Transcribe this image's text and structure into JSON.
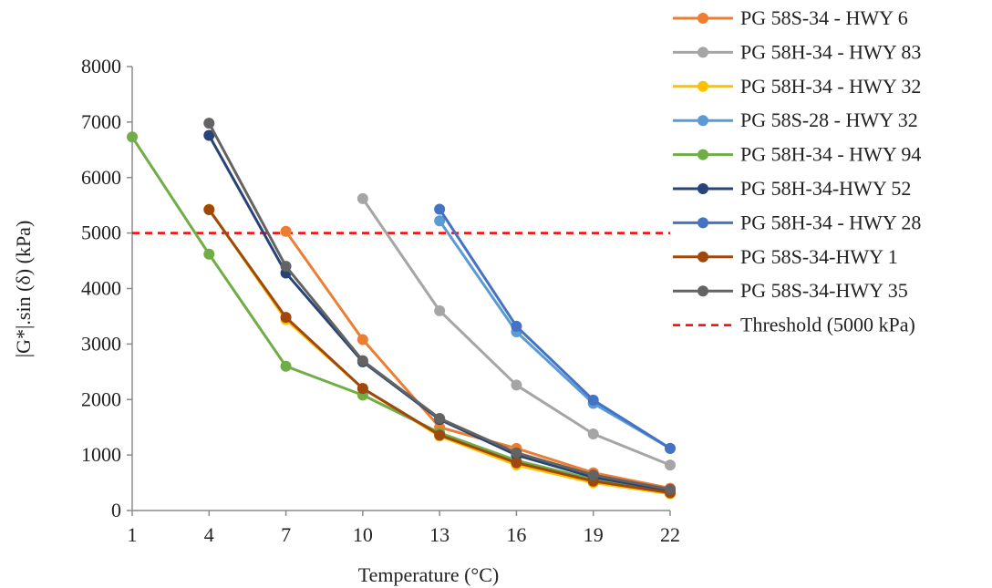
{
  "chart_data": {
    "type": "line",
    "title": "",
    "xlabel": "Temperature (°C)",
    "ylabel": "|G*|.sin (δ) (kPa)",
    "x_ticks": [
      "1",
      "4",
      "7",
      "10",
      "13",
      "16",
      "19",
      "22"
    ],
    "y_ticks": [
      "0",
      "1000",
      "2000",
      "3000",
      "4000",
      "5000",
      "6000",
      "7000",
      "8000"
    ],
    "xlim": [
      1,
      22
    ],
    "ylim": [
      0,
      8000
    ],
    "grid": false,
    "legend_position": "right",
    "series": [
      {
        "name": "PG 58S-34 - HWY 6",
        "color": "#ED7D31",
        "x": [
          7,
          10,
          13,
          16,
          19,
          22
        ],
        "values": [
          5030,
          3080,
          1500,
          1120,
          680,
          400
        ]
      },
      {
        "name": "PG 58H-34 - HWY 83",
        "color": "#A5A5A5",
        "x": [
          10,
          13,
          16,
          19,
          22
        ],
        "values": [
          5620,
          3600,
          2260,
          1380,
          820
        ]
      },
      {
        "name": "PG 58H-34 - HWY 32",
        "color": "#FFC000",
        "x": [
          4,
          7,
          10,
          13,
          16,
          19,
          22
        ],
        "values": [
          5430,
          3440,
          2200,
          1340,
          820,
          500,
          300
        ]
      },
      {
        "name": "PG 58S-28 - HWY 32",
        "color": "#5B9BD5",
        "x": [
          13,
          16,
          19,
          22
        ],
        "values": [
          5220,
          3220,
          1930,
          1120
        ]
      },
      {
        "name": "PG 58H-34 - HWY 94",
        "color": "#70AD47",
        "x": [
          1,
          4,
          7,
          10,
          13,
          16,
          19,
          22
        ],
        "values": [
          6730,
          4620,
          2600,
          2080,
          1400,
          900,
          560,
          340
        ]
      },
      {
        "name": "PG 58H-34-HWY 52",
        "color": "#264478",
        "x": [
          4,
          7,
          10,
          13,
          16,
          19,
          22
        ],
        "values": [
          6760,
          4280,
          2680,
          1640,
          1000,
          600,
          360
        ]
      },
      {
        "name": "PG 58H-34 - HWY 28",
        "color": "#4472C4",
        "x": [
          13,
          16,
          19,
          22
        ],
        "values": [
          5430,
          3320,
          1990,
          1120
        ]
      },
      {
        "name": "PG 58S-34-HWY 1",
        "color": "#9E480E",
        "x": [
          4,
          7,
          10,
          13,
          16,
          19,
          22
        ],
        "values": [
          5420,
          3480,
          2200,
          1360,
          860,
          530,
          320
        ]
      },
      {
        "name": "PG 58S-34-HWY 35",
        "color": "#636363",
        "x": [
          4,
          7,
          10,
          13,
          16,
          19,
          22
        ],
        "values": [
          6980,
          4400,
          2700,
          1660,
          1040,
          640,
          380
        ]
      }
    ],
    "threshold": {
      "name": "Threshold (5000 kPa)",
      "value": 5000,
      "color": "#FF0000"
    }
  }
}
